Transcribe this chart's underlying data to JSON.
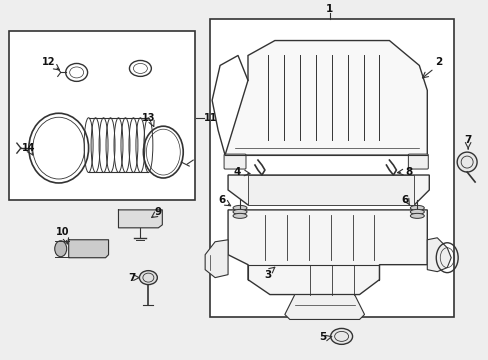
{
  "bg_color": "#eeeeee",
  "line_color": "#333333",
  "white": "#ffffff",
  "fig_w": 4.89,
  "fig_h": 3.6,
  "dpi": 100,
  "font_size": 7.5,
  "font_size_sm": 7.0
}
